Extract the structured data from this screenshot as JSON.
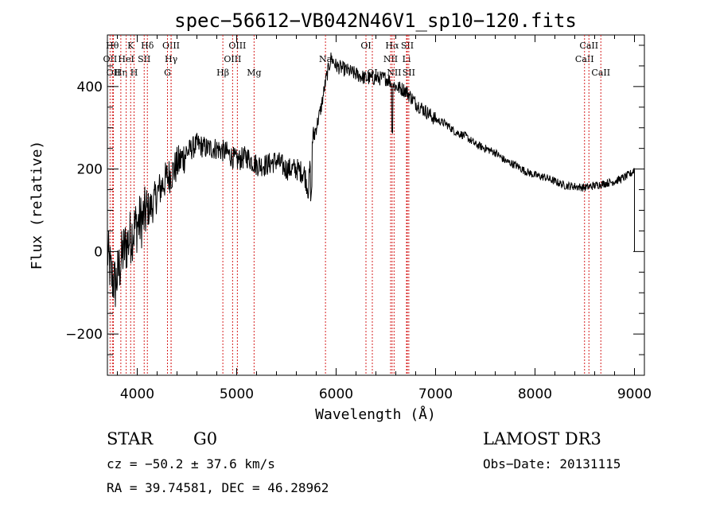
{
  "chart_data": {
    "type": "line",
    "title": "spec−56612−VB042N46V1_sp10−120.fits",
    "xlabel": "Wavelength (Å)",
    "ylabel": "Flux (relative)",
    "xlim": [
      3700,
      9100
    ],
    "ylim": [
      -300,
      525
    ],
    "x_ticks": [
      4000,
      5000,
      6000,
      7000,
      8000,
      9000
    ],
    "y_ticks": [
      -200,
      0,
      200,
      400
    ],
    "x_tick_labels": [
      "4000",
      "5000",
      "6000",
      "7000",
      "8000",
      "9000"
    ],
    "y_tick_labels": [
      "−200",
      "0",
      "200",
      "400"
    ],
    "series": [
      {
        "name": "flux",
        "x": [
          3700,
          3740,
          3780,
          3820,
          3860,
          3900,
          3940,
          3980,
          4020,
          4060,
          4100,
          4150,
          4200,
          4250,
          4300,
          4350,
          4400,
          4500,
          4600,
          4700,
          4800,
          4900,
          5000,
          5100,
          5200,
          5300,
          5400,
          5500,
          5600,
          5680,
          5720,
          5760,
          5800,
          5850,
          5900,
          5950,
          6000,
          6100,
          6200,
          6300,
          6400,
          6500,
          6560,
          6600,
          6700,
          6800,
          6900,
          7000,
          7100,
          7200,
          7300,
          7400,
          7500,
          7600,
          7700,
          7800,
          7900,
          8000,
          8100,
          8200,
          8300,
          8400,
          8500,
          8600,
          8700,
          8800,
          8900,
          8970,
          9000
        ],
        "y": [
          0,
          -60,
          -80,
          -40,
          0,
          20,
          40,
          60,
          70,
          80,
          100,
          110,
          140,
          160,
          180,
          190,
          210,
          240,
          260,
          250,
          250,
          240,
          220,
          230,
          210,
          210,
          220,
          200,
          200,
          190,
          150,
          270,
          300,
          350,
          420,
          470,
          450,
          440,
          430,
          420,
          420,
          420,
          410,
          400,
          390,
          360,
          340,
          320,
          310,
          290,
          280,
          260,
          250,
          240,
          220,
          210,
          195,
          185,
          180,
          170,
          160,
          158,
          155,
          160,
          165,
          170,
          180,
          190,
          200
        ]
      }
    ],
    "lines": [
      {
        "name": "OII",
        "x": 3727,
        "row": 1
      },
      {
        "name": "Hθ",
        "x": 3750,
        "row": 0
      },
      {
        "name": "OII",
        "x": 3760,
        "row": 2
      },
      {
        "name": "Hη",
        "x": 3835,
        "row": 2
      },
      {
        "name": "HeI",
        "x": 3889,
        "row": 1
      },
      {
        "name": "K",
        "x": 3934,
        "row": 0
      },
      {
        "name": "H",
        "x": 3968,
        "row": 2
      },
      {
        "name": "SII",
        "x": 4070,
        "row": 1
      },
      {
        "name": "Hδ",
        "x": 4102,
        "row": 0
      },
      {
        "name": "G",
        "x": 4304,
        "row": 2
      },
      {
        "name": "OIII",
        "x": 4340,
        "row": 0
      },
      {
        "name": "Hγ",
        "x": 4341,
        "row": 1
      },
      {
        "name": "Hβ",
        "x": 4861,
        "row": 2
      },
      {
        "name": "OIII",
        "x": 4959,
        "row": 1
      },
      {
        "name": "OIII",
        "x": 5007,
        "row": 0
      },
      {
        "name": "Mg",
        "x": 5175,
        "row": 2
      },
      {
        "name": "Na",
        "x": 5893,
        "row": 1
      },
      {
        "name": "OI",
        "x": 6300,
        "row": 0
      },
      {
        "name": "OI",
        "x": 6364,
        "row": 2
      },
      {
        "name": "NII",
        "x": 6548,
        "row": 1
      },
      {
        "name": "Hα",
        "x": 6563,
        "row": 0
      },
      {
        "name": "NII",
        "x": 6583,
        "row": 2
      },
      {
        "name": "Li",
        "x": 6708,
        "row": 1
      },
      {
        "name": "SII",
        "x": 6716,
        "row": 0
      },
      {
        "name": "SII",
        "x": 6731,
        "row": 2
      },
      {
        "name": "CaII",
        "x": 8498,
        "row": 1
      },
      {
        "name": "CaII",
        "x": 8542,
        "row": 0
      },
      {
        "name": "CaII",
        "x": 8662,
        "row": 2
      }
    ]
  },
  "footer": {
    "class_label": "STAR",
    "subclass": "G0",
    "survey": "LAMOST DR3",
    "redshift": "cz = −50.2 ± 37.6 km/s",
    "obs_date": "Obs−Date: 20131115",
    "coords": "RA =  39.74581, DEC =  46.28962"
  }
}
